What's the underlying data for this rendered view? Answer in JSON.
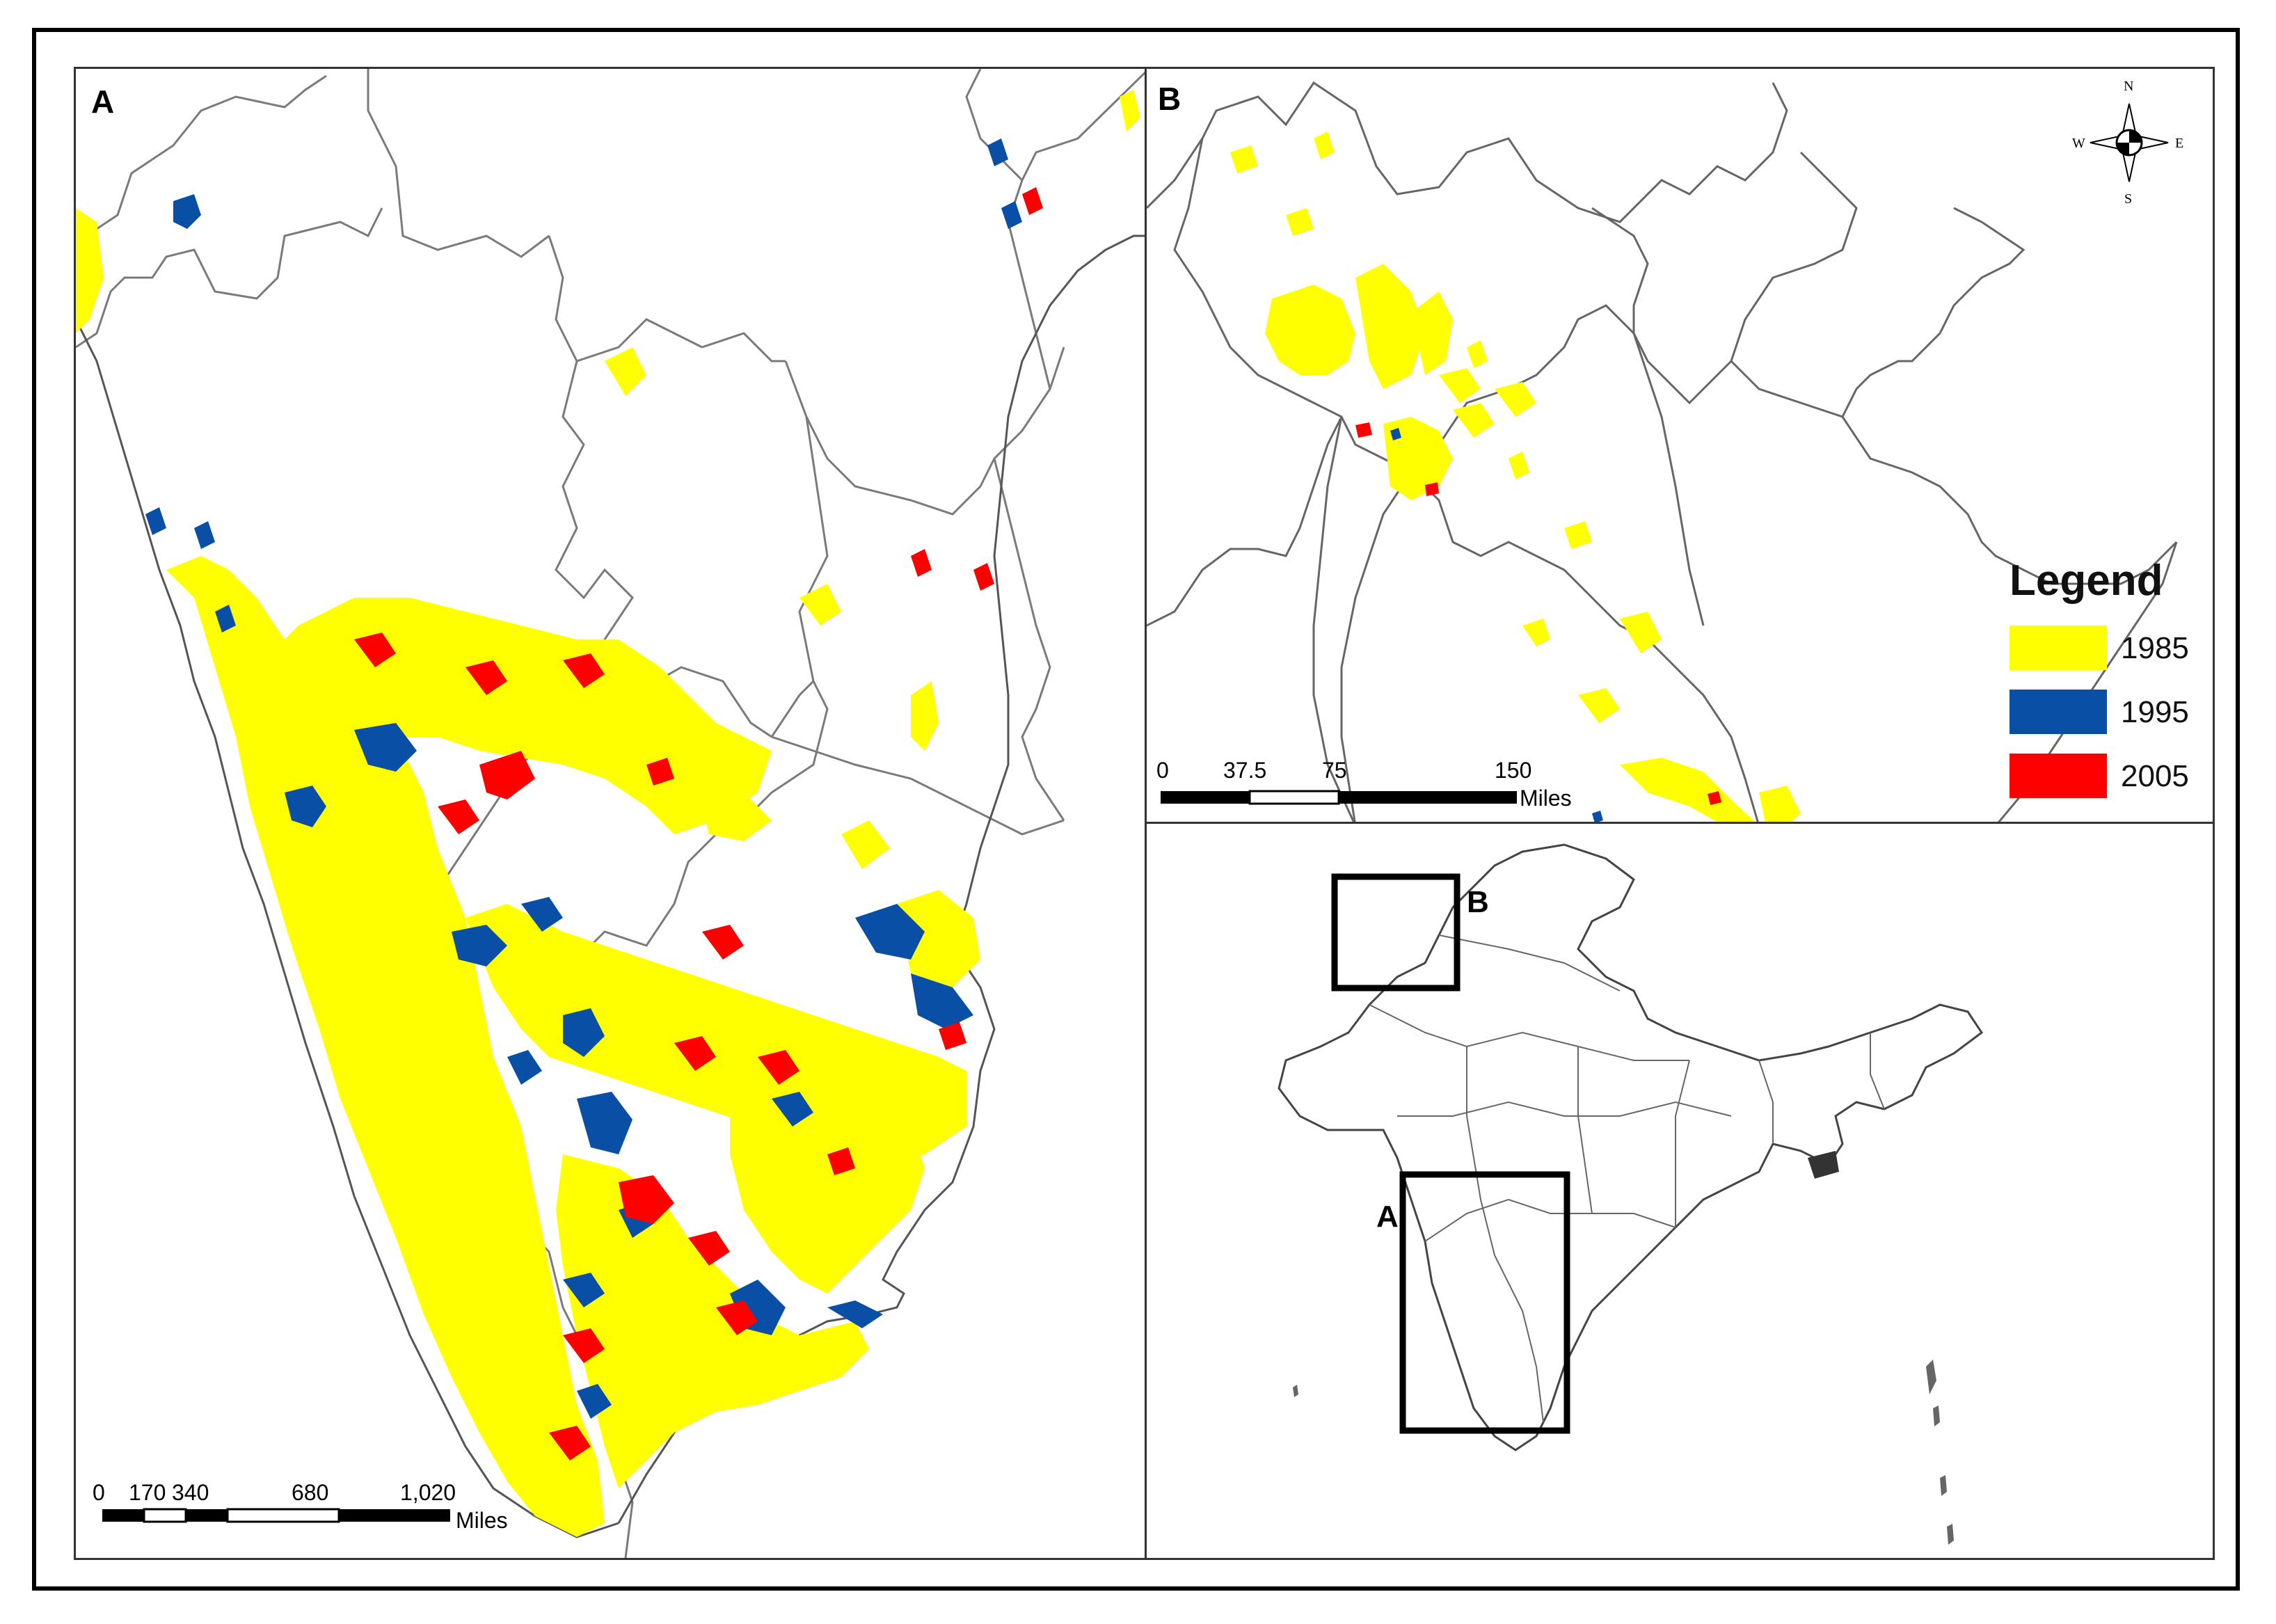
{
  "panel_a": {
    "letter": "A",
    "scale": {
      "ticks": [
        "0",
        "170",
        "340",
        "680",
        "1,020"
      ],
      "unit": "Miles"
    }
  },
  "panel_b": {
    "letter": "B",
    "scale": {
      "ticks": [
        "0",
        "37.5",
        "75",
        "150"
      ],
      "unit": "Miles"
    },
    "north_arrow": {
      "n": "N",
      "s": "S",
      "e": "E",
      "w": "W"
    }
  },
  "legend": {
    "title": "Legend",
    "items": [
      {
        "label": "1985",
        "color": "#ffff00"
      },
      {
        "label": "1995",
        "color": "#0a4fa6"
      },
      {
        "label": "2005",
        "color": "#ff0000"
      }
    ]
  },
  "panel_c": {
    "box_a_label": "A",
    "box_b_label": "B"
  },
  "colors": {
    "frame": "#000000",
    "boundary": "#7a7a7a",
    "land_outline": "#555555"
  }
}
